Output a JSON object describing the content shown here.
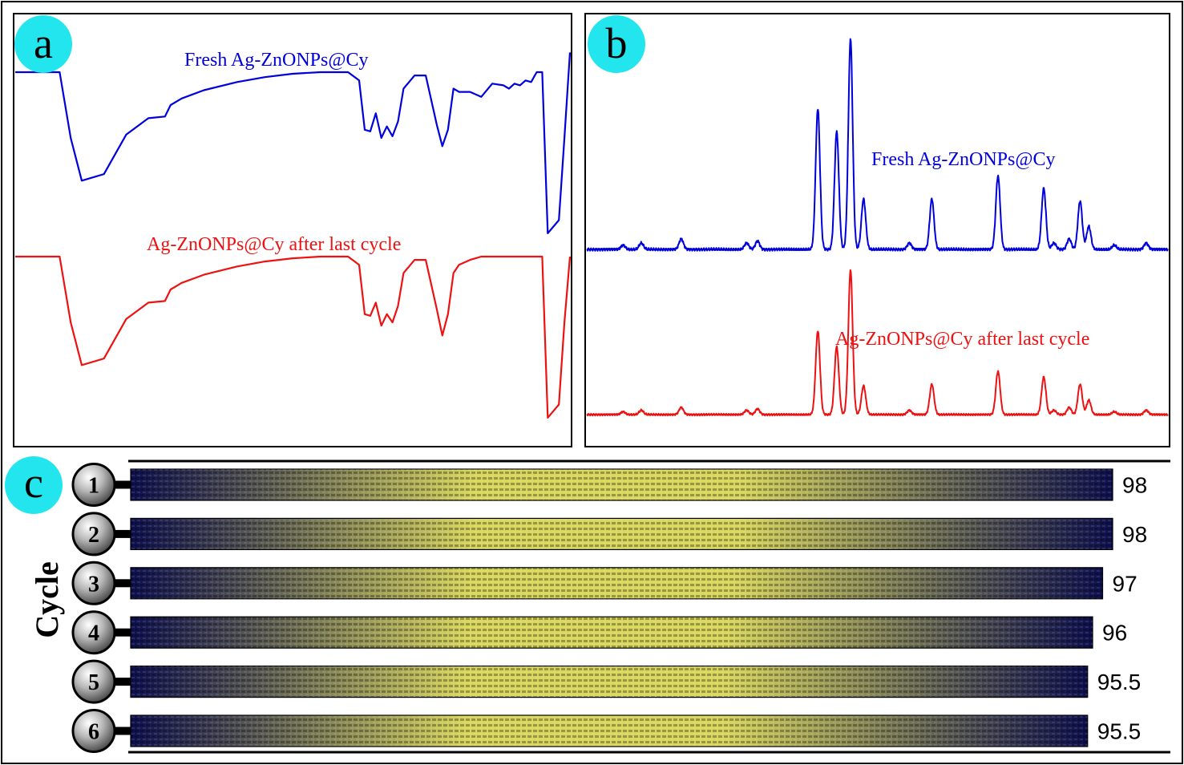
{
  "figure": {
    "colors": {
      "fresh": "#0000dd",
      "used": "#ee1111",
      "badge": "#22e5ee",
      "frame": "#000000",
      "bar_dark": "#0e1050",
      "bar_light": "#d9d75e"
    },
    "panel_a": {
      "badge": "a",
      "label_fresh": "Fresh Ag-ZnONPs@Cy",
      "label_used": "Ag-ZnONPs@Cy after last cycle"
    },
    "panel_b": {
      "badge": "b",
      "label_fresh": "Fresh Ag-ZnONPs@Cy",
      "label_used": "Ag-ZnONPs@Cy after last cycle"
    },
    "panel_c": {
      "badge": "c",
      "axis_label": "Cycle"
    }
  },
  "chart_data": [
    {
      "type": "line",
      "panel": "a",
      "grid": false,
      "series": [
        {
          "name": "Fresh Ag-ZnONPs@Cy",
          "x": [
            0,
            4,
            8,
            10,
            12,
            16,
            20,
            24,
            27,
            28,
            30,
            34,
            40,
            45,
            50,
            55,
            60,
            62,
            63,
            64,
            65,
            66,
            67,
            68,
            69,
            70,
            72,
            74,
            76,
            77,
            78,
            79,
            80,
            82,
            84,
            86,
            88,
            89,
            90,
            91,
            92,
            93,
            93.5,
            94,
            95,
            96,
            98,
            99,
            100
          ],
          "y": [
            0,
            0,
            0,
            0.4,
            0.66,
            0.62,
            0.38,
            0.28,
            0.27,
            0.2,
            0.16,
            0.11,
            0.06,
            0.03,
            0.01,
            0,
            0,
            0.05,
            0.35,
            0.36,
            0.25,
            0.4,
            0.33,
            0.39,
            0.3,
            0.1,
            0.02,
            0.02,
            0.32,
            0.45,
            0.35,
            0.1,
            0.12,
            0.12,
            0.15,
            0.07,
            0.08,
            0.1,
            0.07,
            0.08,
            0.05,
            0.06,
            0.03,
            0.0,
            0.0,
            0.98,
            0.9,
            0.4,
            -0.12
          ]
        },
        {
          "name": "Ag-ZnONPs@Cy after last cycle",
          "x": [
            0,
            4,
            8,
            10,
            12,
            16,
            20,
            24,
            27,
            28,
            30,
            34,
            40,
            45,
            50,
            55,
            60,
            62,
            63,
            64,
            65,
            66,
            67,
            68,
            69,
            70,
            72,
            74,
            76,
            77,
            78,
            79,
            80,
            82,
            84,
            86,
            88,
            89,
            90,
            91,
            92,
            93,
            93.5,
            94,
            95,
            96,
            98,
            99,
            100
          ],
          "y": [
            0,
            0,
            0,
            0.4,
            0.66,
            0.62,
            0.38,
            0.28,
            0.27,
            0.2,
            0.16,
            0.11,
            0.06,
            0.03,
            0.01,
            0,
            0,
            0.05,
            0.35,
            0.36,
            0.28,
            0.42,
            0.35,
            0.4,
            0.3,
            0.1,
            0.02,
            0.02,
            0.32,
            0.48,
            0.35,
            0.1,
            0.05,
            0.02,
            0.0,
            0.0,
            0.0,
            0.0,
            0.0,
            0.0,
            0.0,
            0.0,
            0.0,
            0.0,
            0.0,
            0.98,
            0.9,
            0.4,
            0.0
          ]
        }
      ]
    },
    {
      "type": "line",
      "panel": "b",
      "grid": false,
      "peak_width": 0.7,
      "series": [
        {
          "name": "Fresh Ag-ZnONPs@Cy",
          "peaks": [
            [
              5,
              0.02
            ],
            [
              7.5,
              0.03
            ],
            [
              13,
              0.05
            ],
            [
              22,
              0.03
            ],
            [
              23.5,
              0.04
            ],
            [
              31.8,
              0.67
            ],
            [
              34.4,
              0.56
            ],
            [
              36.3,
              1.0
            ],
            [
              38.1,
              0.24
            ],
            [
              44.4,
              0.03
            ],
            [
              47.5,
              0.24
            ],
            [
              56.6,
              0.35
            ],
            [
              62.9,
              0.29
            ],
            [
              64.3,
              0.03
            ],
            [
              66.4,
              0.05
            ],
            [
              67.9,
              0.23
            ],
            [
              69.1,
              0.11
            ],
            [
              72.6,
              0.02
            ],
            [
              77,
              0.03
            ]
          ]
        },
        {
          "name": "Ag-ZnONPs@Cy after last cycle",
          "peaks": [
            [
              5,
              0.02
            ],
            [
              7.5,
              0.03
            ],
            [
              13,
              0.05
            ],
            [
              22,
              0.03
            ],
            [
              23.5,
              0.04
            ],
            [
              31.8,
              0.58
            ],
            [
              34.4,
              0.47
            ],
            [
              36.3,
              1.0
            ],
            [
              38.1,
              0.2
            ],
            [
              44.4,
              0.03
            ],
            [
              47.5,
              0.21
            ],
            [
              56.6,
              0.3
            ],
            [
              62.9,
              0.26
            ],
            [
              64.3,
              0.03
            ],
            [
              66.4,
              0.05
            ],
            [
              67.9,
              0.21
            ],
            [
              69.1,
              0.1
            ],
            [
              72.6,
              0.02
            ],
            [
              77,
              0.03
            ]
          ]
        }
      ]
    },
    {
      "type": "bar",
      "panel": "c",
      "orientation": "horizontal",
      "categories": [
        "1",
        "2",
        "3",
        "4",
        "5",
        "6"
      ],
      "values": [
        98,
        98,
        97,
        96,
        95.5,
        95.5
      ],
      "ylabel": "Cycle"
    }
  ]
}
